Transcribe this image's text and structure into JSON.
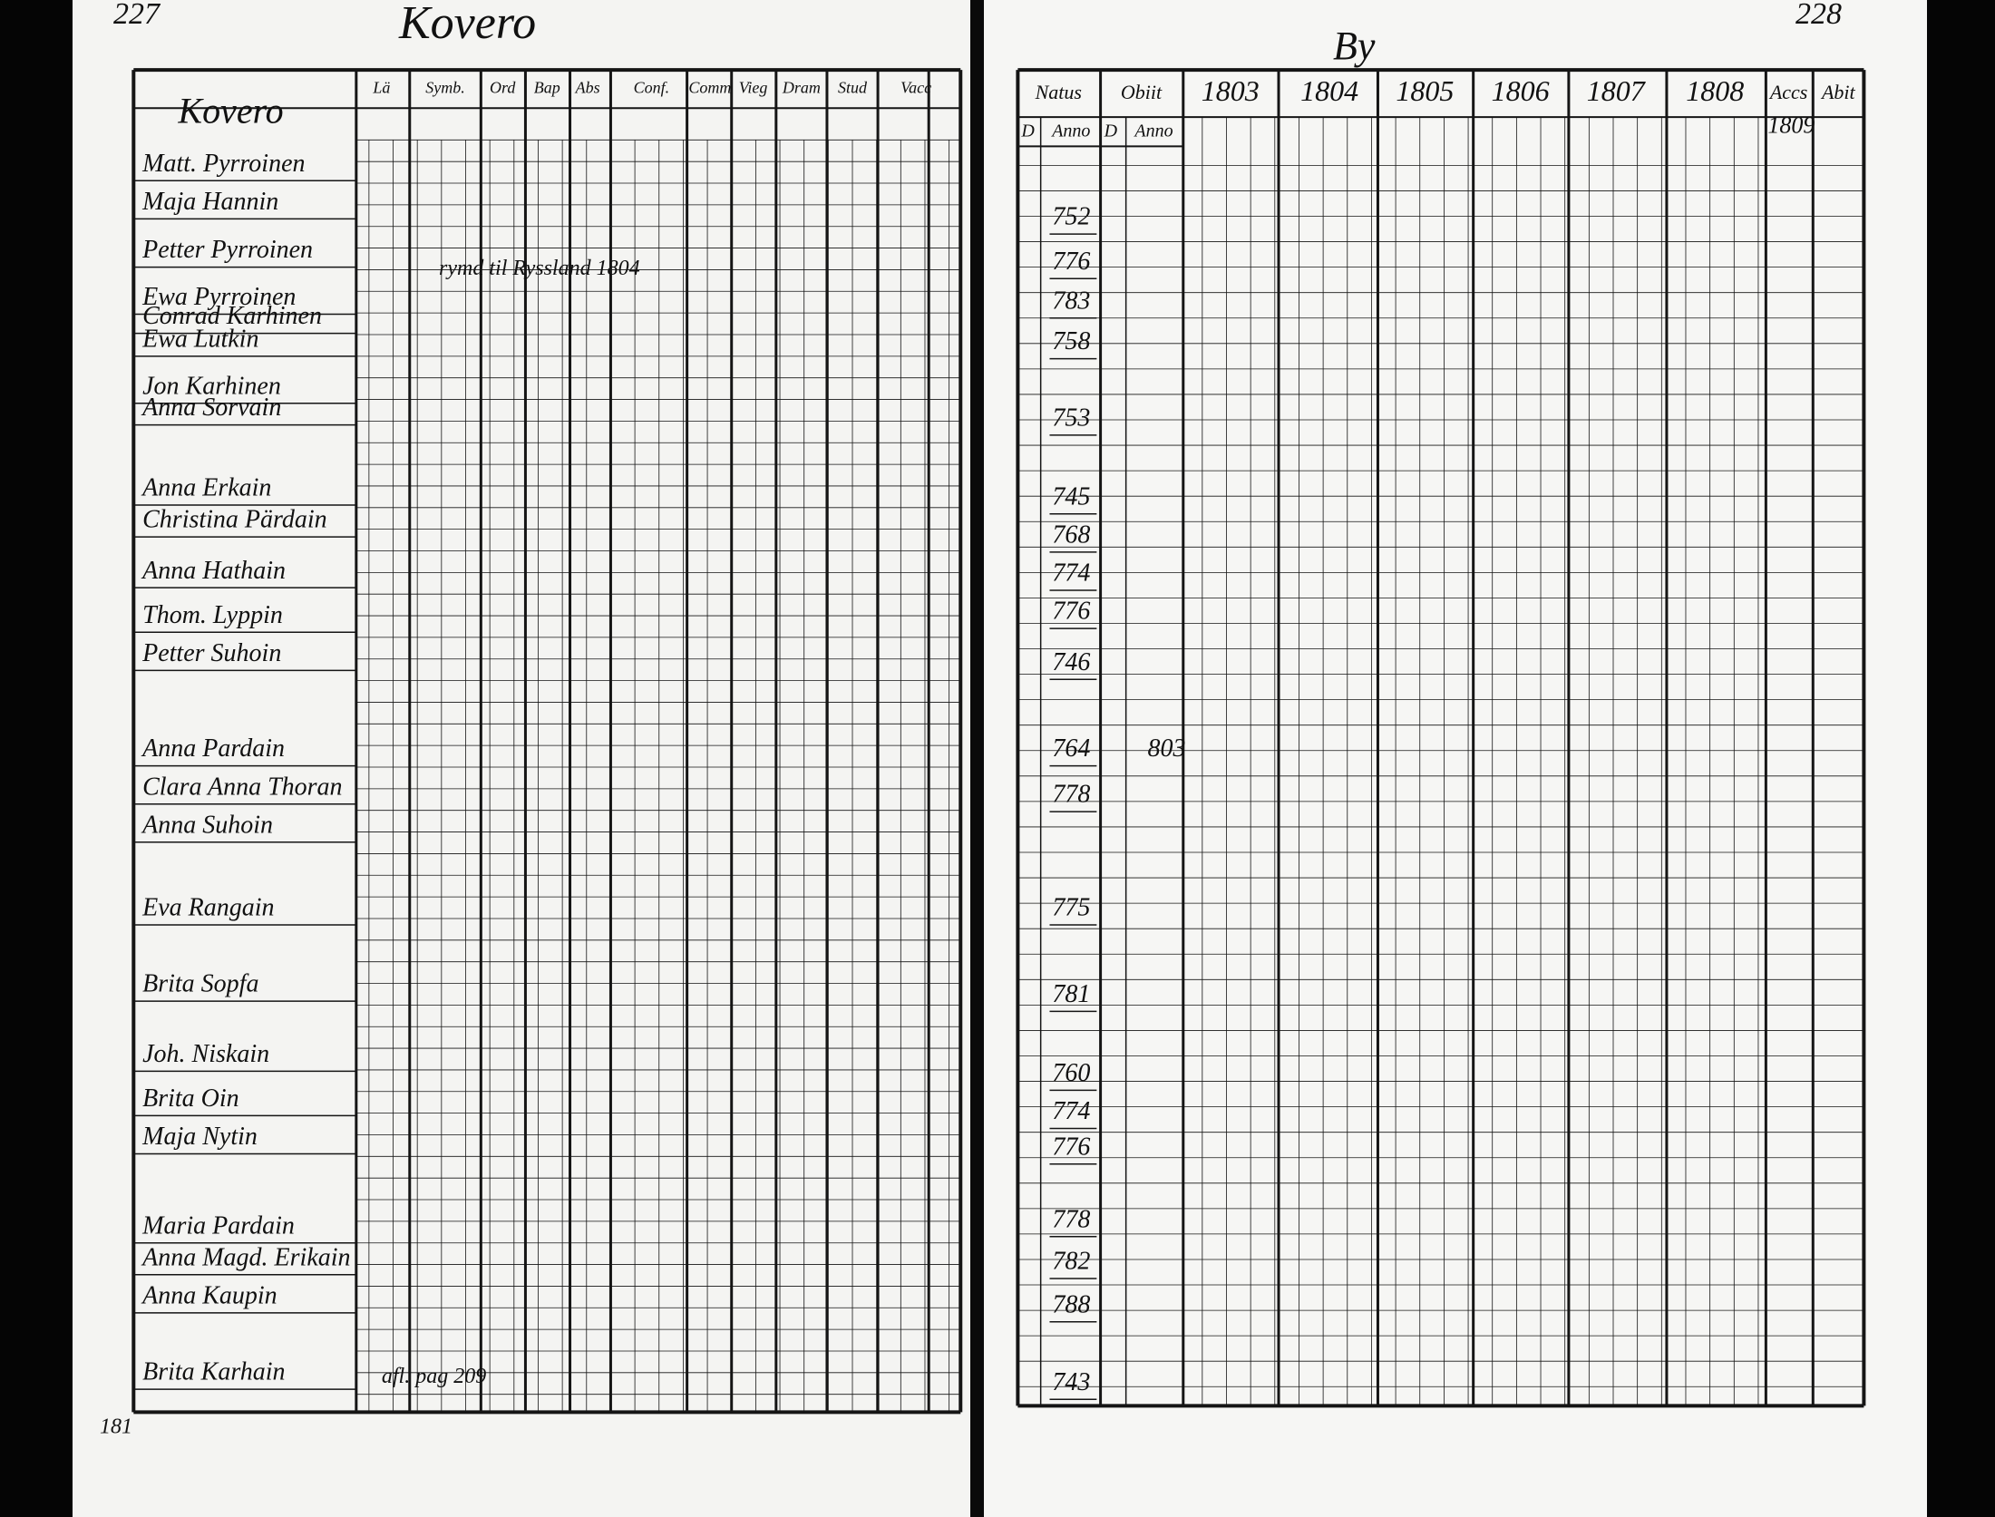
{
  "header": {
    "left_page_number": "227",
    "left_title": "Kovero",
    "right_page_number": "228",
    "right_title": "By"
  },
  "left_table": {
    "columns": [
      "Lä",
      "Symb.",
      "Ord",
      "Bap",
      "Abs",
      "Conf.",
      "Comm",
      "Vieg",
      "Dram",
      "Stud",
      "Vacc"
    ],
    "names": [
      "Kovero",
      "Matt. Pyrroinen",
      "Maja Hannin",
      "Petter Pyrroinen",
      "Ewa Pyrroinen",
      "Conrad Karhinen",
      "Ewa Lutkin",
      "Jon Karhinen",
      "Anna Sorvain",
      "Anna Erkain",
      "Christina Pärdain",
      "Anna Hathain",
      "Thom. Lyppin",
      "Petter Suhoin",
      "Anna Pardain",
      "Clara Anna Thoran",
      "Anna Suhoin",
      "Eva Rangain",
      "Brita Sopfa",
      "Joh. Niskain",
      "Brita Oin",
      "Maja Nytin",
      "Maria Pardain",
      "Anna Magd. Erikain",
      "Anna Kaupin",
      "Brita Karhain"
    ],
    "notes": [
      "rymd til Ryssland 1804",
      "afl. pag 209"
    ]
  },
  "right_table": {
    "columns": [
      "Natus",
      "Obiit",
      "1803",
      "1804",
      "1805",
      "1806",
      "1807",
      "1808",
      "Accs",
      "Abit"
    ],
    "subcolumns": [
      "D",
      "Anno",
      "D",
      "Anno"
    ],
    "accs_year": "1809",
    "rows": [
      {
        "natus": "752"
      },
      {
        "natus": "776"
      },
      {
        "natus": "783"
      },
      {
        "natus": "758"
      },
      {
        "natus": "753"
      },
      {
        "natus": "745"
      },
      {
        "natus": "768"
      },
      {
        "natus": "774"
      },
      {
        "natus": "776"
      },
      {
        "natus": "746"
      },
      {
        "natus": "764",
        "obiit": "803"
      },
      {
        "natus": "778"
      },
      {
        "natus": "775"
      },
      {
        "natus": "781"
      },
      {
        "natus": "760"
      },
      {
        "natus": "774"
      },
      {
        "natus": "776"
      },
      {
        "natus": "778"
      },
      {
        "natus": "782"
      },
      {
        "natus": "788"
      },
      {
        "natus": "743"
      }
    ]
  },
  "footer": {
    "left_number": "181"
  }
}
